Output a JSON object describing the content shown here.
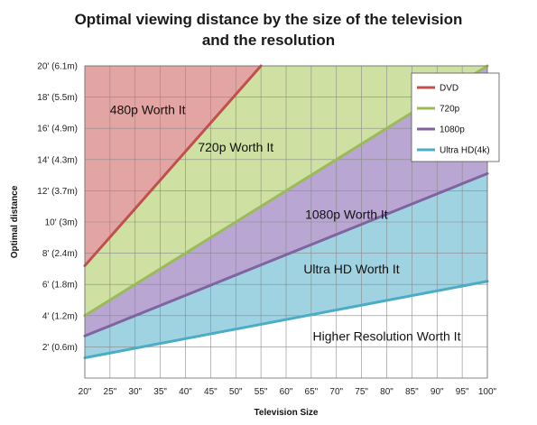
{
  "chart_data": {
    "type": "area",
    "title_line1": "Optimal viewing distance by the size of the television",
    "title_line2": "and the resolution",
    "xlabel": "Television Size",
    "ylabel": "Optimal distance",
    "x": [
      20,
      25,
      30,
      35,
      40,
      45,
      50,
      55,
      60,
      65,
      70,
      75,
      80,
      85,
      90,
      95,
      100
    ],
    "xticks": [
      "20\"",
      "25\"",
      "30\"",
      "35\"",
      "40\"",
      "45\"",
      "50\"",
      "55\"",
      "60\"",
      "65\"",
      "70\"",
      "75\"",
      "80\"",
      "85\"",
      "90\"",
      "95\"",
      "100\""
    ],
    "xlim": [
      20,
      100
    ],
    "yticks": [
      {
        "value": 2,
        "label": "2' (0.6m)"
      },
      {
        "value": 4,
        "label": "4' (1.2m)"
      },
      {
        "value": 6,
        "label": "6' (1.8m)"
      },
      {
        "value": 8,
        "label": "8' (2.4m)"
      },
      {
        "value": 10,
        "label": "10' (3m)"
      },
      {
        "value": 12,
        "label": "12' (3.7m)"
      },
      {
        "value": 14,
        "label": "14' (4.3m)"
      },
      {
        "value": 16,
        "label": "16' (4.9m)"
      },
      {
        "value": 18,
        "label": "18' (5.5m)"
      },
      {
        "value": 20,
        "label": "20' (6.1m)"
      }
    ],
    "ylim": [
      0,
      20
    ],
    "grid": true,
    "legend_position": "top-right",
    "series": [
      {
        "name": "DVD",
        "color": "#c0504d",
        "fill": "#e3a5a4",
        "points": [
          [
            20,
            7.2
          ],
          [
            55,
            20
          ]
        ]
      },
      {
        "name": "720p",
        "color": "#9bbb59",
        "fill": "#cfe0a3",
        "points": [
          [
            20,
            4.0
          ],
          [
            100,
            20
          ]
        ]
      },
      {
        "name": "1080p",
        "color": "#8064a2",
        "fill": "#b9a6d3",
        "points": [
          [
            20,
            2.7
          ],
          [
            100,
            13.1
          ]
        ]
      },
      {
        "name": "Ultra HD(4k)",
        "color": "#4bacc6",
        "fill": "#9fd3e2",
        "points": [
          [
            20,
            1.3
          ],
          [
            100,
            6.2
          ]
        ]
      }
    ],
    "annotations": [
      {
        "text": "480p Worth It",
        "x": 32.5,
        "y": 17.2
      },
      {
        "text": "720p Worth It",
        "x": 50,
        "y": 14.8
      },
      {
        "text": "1080p Worth It",
        "x": 72,
        "y": 10.5
      },
      {
        "text": "Ultra HD Worth It",
        "x": 73,
        "y": 7.0
      },
      {
        "text": "Higher Resolution Worth It",
        "x": 80,
        "y": 2.7
      }
    ]
  }
}
